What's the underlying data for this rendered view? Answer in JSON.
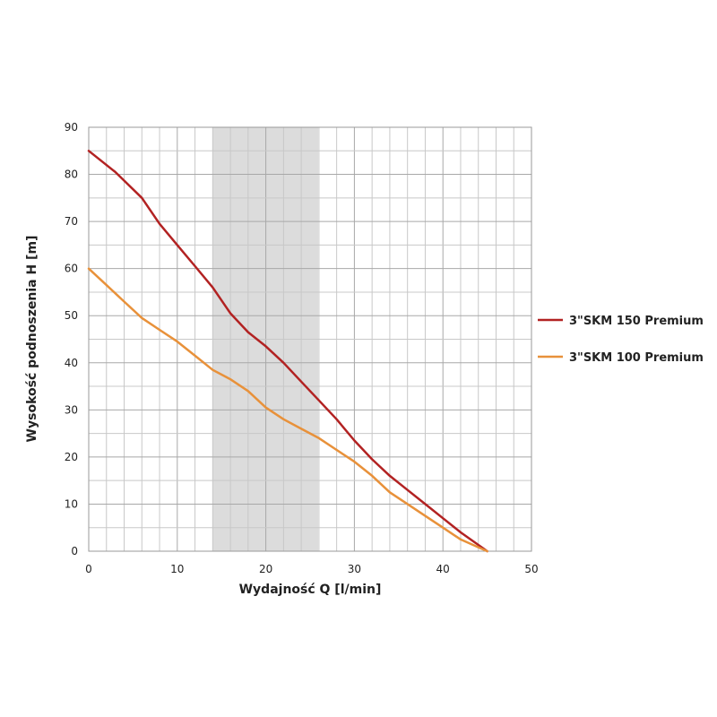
{
  "chart_data": {
    "type": "line",
    "title": "",
    "xlabel": "Wydajność Q [l/min]",
    "ylabel": "Wysokość podnoszenia H [m]",
    "xlim": [
      0,
      50
    ],
    "ylim": [
      0,
      90
    ],
    "xticks": [
      "0",
      "10",
      "20",
      "30",
      "40",
      "50"
    ],
    "yticks": [
      "0",
      "10",
      "20",
      "30",
      "40",
      "50",
      "60",
      "70",
      "80",
      "90"
    ],
    "grid": true,
    "legend_position": "right",
    "shaded_range_x": [
      14,
      26
    ],
    "series": [
      {
        "name": "3\"SKM 150 Premium",
        "color": "#b22222",
        "x": [
          0,
          3,
          6,
          8,
          10,
          12,
          14,
          16,
          18,
          20,
          22,
          24,
          26,
          28,
          30,
          32,
          34,
          36,
          38,
          40,
          42,
          45
        ],
        "y": [
          85,
          80.5,
          75,
          69.5,
          65,
          60.5,
          56,
          50.5,
          46.5,
          43.5,
          40,
          36,
          32,
          28,
          23.5,
          19.5,
          16,
          13,
          10,
          7,
          4,
          0
        ]
      },
      {
        "name": "3\"SKM 100 Premium",
        "color": "#e8913a",
        "x": [
          0,
          2,
          4,
          6,
          8,
          10,
          12,
          14,
          16,
          18,
          20,
          22,
          24,
          26,
          28,
          30,
          32,
          34,
          36,
          38,
          40,
          42,
          45
        ],
        "y": [
          60,
          56.5,
          53,
          49.5,
          47,
          44.5,
          41.5,
          38.5,
          36.5,
          34,
          30.5,
          28,
          26,
          24,
          21.5,
          19,
          16,
          12.5,
          10,
          7.5,
          5,
          2.5,
          0
        ]
      }
    ]
  }
}
